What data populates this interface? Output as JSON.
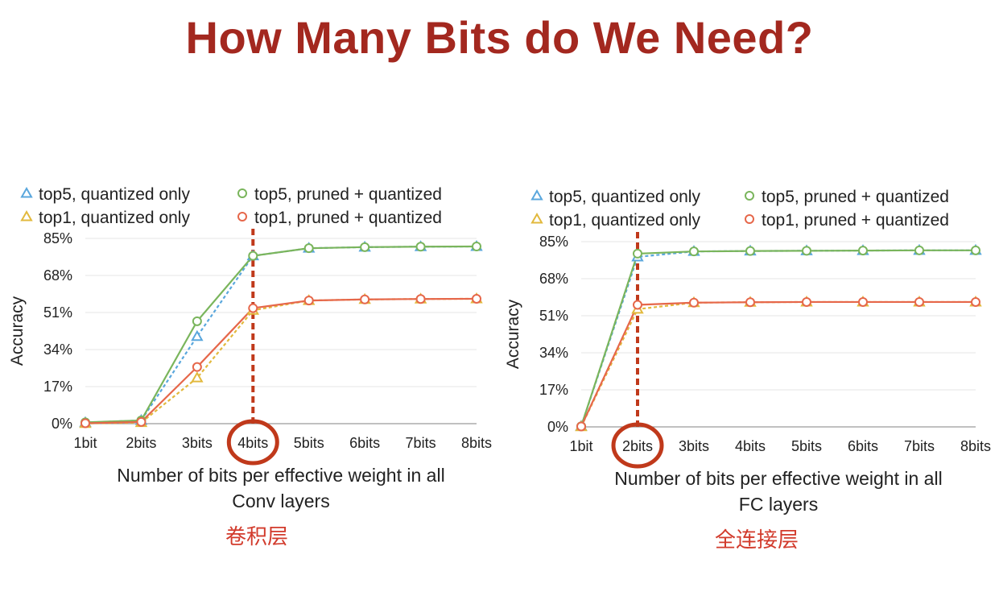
{
  "title": "How Many Bits do We Need?",
  "colors": {
    "title": "#a3281f",
    "top5_quantized": "#5aa7dd",
    "top1_quantized": "#e2b93d",
    "top5_pruned": "#7ab55c",
    "top1_pruned": "#e6674a",
    "highlight": "#c0391b",
    "grid": "#e4e4e4"
  },
  "chart_data": [
    {
      "type": "line",
      "ylabel": "Accuracy",
      "xlabel_lines": [
        "Number of bits per effective weight in all",
        "Conv layers"
      ],
      "note": "卷积层",
      "categories": [
        "1bit",
        "2bits",
        "3bits",
        "4bits",
        "5bits",
        "6bits",
        "7bits",
        "8bits"
      ],
      "yticks": [
        "0%",
        "17%",
        "34%",
        "51%",
        "68%",
        "85%"
      ],
      "ylim": [
        0,
        85
      ],
      "highlight_category": "4bits",
      "legend": {
        "placement": "top",
        "entries": [
          "top5, quantized only",
          "top1, quantized only",
          "top5, pruned + quantized",
          "top1, pruned + quantized"
        ]
      },
      "series": [
        {
          "name": "top5, quantized only",
          "marker": "triangle",
          "dash": true,
          "values": [
            0.5,
            1.5,
            40,
            77,
            80.5,
            81,
            81.2,
            81.3
          ]
        },
        {
          "name": "top1, quantized only",
          "marker": "triangle",
          "dash": true,
          "values": [
            0.1,
            0.5,
            21,
            52,
            56.5,
            57,
            57.2,
            57.3
          ]
        },
        {
          "name": "top5, pruned + quantized",
          "marker": "circle",
          "dash": false,
          "values": [
            0.6,
            1.5,
            47,
            77,
            80.5,
            81,
            81.2,
            81.3
          ]
        },
        {
          "name": "top1, pruned + quantized",
          "marker": "circle",
          "dash": false,
          "values": [
            0.2,
            0.8,
            26,
            53,
            56.5,
            57,
            57.2,
            57.3
          ]
        }
      ]
    },
    {
      "type": "line",
      "ylabel": "Accuracy",
      "xlabel_lines": [
        "Number of bits per effective weight in all",
        "FC layers"
      ],
      "note": "全连接层",
      "categories": [
        "1bit",
        "2bits",
        "3bits",
        "4bits",
        "5bits",
        "6bits",
        "7bits",
        "8bits"
      ],
      "yticks": [
        "0%",
        "17%",
        "34%",
        "51%",
        "68%",
        "85%"
      ],
      "ylim": [
        0,
        85
      ],
      "highlight_category": "2bits",
      "legend": {
        "placement": "top",
        "entries": [
          "top5, quantized only",
          "top1, quantized only",
          "top5, pruned + quantized",
          "top1, pruned + quantized"
        ]
      },
      "series": [
        {
          "name": "top5, quantized only",
          "marker": "triangle",
          "dash": true,
          "values": [
            0.3,
            78,
            80.5,
            80.7,
            80.8,
            80.9,
            81,
            81
          ]
        },
        {
          "name": "top1, quantized only",
          "marker": "triangle",
          "dash": true,
          "values": [
            0.1,
            54,
            57,
            57.2,
            57.3,
            57.3,
            57.3,
            57.3
          ]
        },
        {
          "name": "top5, pruned + quantized",
          "marker": "circle",
          "dash": false,
          "values": [
            0.3,
            79.5,
            80.5,
            80.7,
            80.8,
            80.9,
            81,
            81
          ]
        },
        {
          "name": "top1, pruned + quantized",
          "marker": "circle",
          "dash": false,
          "values": [
            0.2,
            56,
            57,
            57.2,
            57.3,
            57.3,
            57.3,
            57.3
          ]
        }
      ]
    }
  ]
}
